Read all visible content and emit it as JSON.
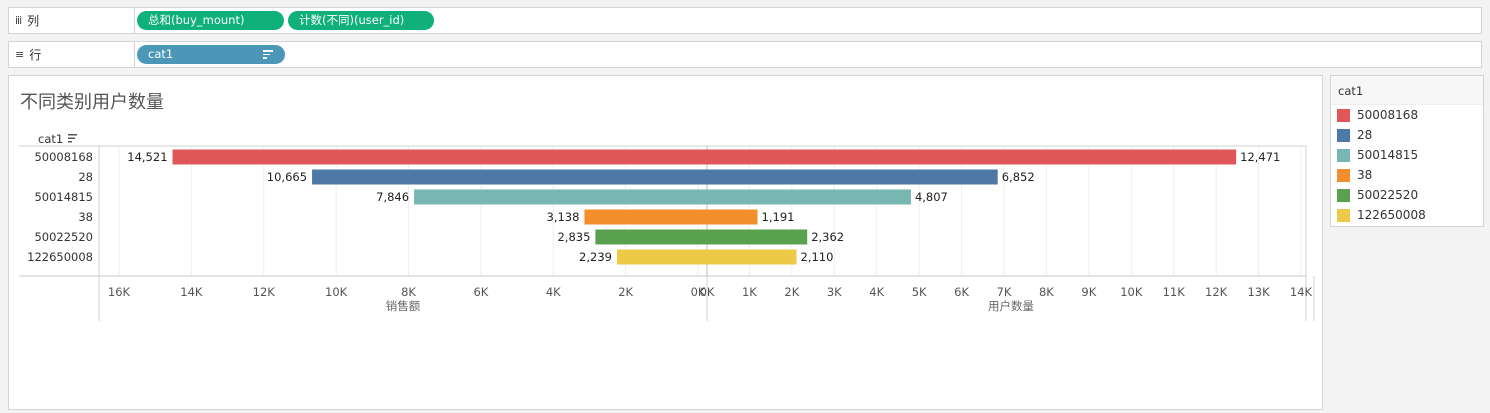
{
  "shelves": {
    "columns": {
      "label": "列",
      "pills": [
        "总和(buy_mount)",
        "计数(不同)(user_id)"
      ]
    },
    "rows": {
      "label": "行",
      "pills": [
        "cat1"
      ]
    }
  },
  "sheet": {
    "title": "不同类别用户数量",
    "row_header": "cat1"
  },
  "legend": {
    "title": "cat1",
    "items": [
      {
        "label": "50008168",
        "color": "#e15759"
      },
      {
        "label": "28",
        "color": "#4e79a7"
      },
      {
        "label": "50014815",
        "color": "#76b7b2"
      },
      {
        "label": "38",
        "color": "#f28e2b"
      },
      {
        "label": "50022520",
        "color": "#59a14f"
      },
      {
        "label": "122650008",
        "color": "#edc948"
      }
    ]
  },
  "chart_data": {
    "type": "bar",
    "orientation": "horizontal-butterfly",
    "categories": [
      "50008168",
      "28",
      "50014815",
      "38",
      "50022520",
      "122650008"
    ],
    "colors": [
      "#e15759",
      "#4e79a7",
      "#76b7b2",
      "#f28e2b",
      "#59a14f",
      "#edc948"
    ],
    "series": [
      {
        "name": "销售额",
        "values": [
          14521,
          10665,
          7846,
          3138,
          2835,
          2239
        ],
        "labels": [
          "14,521",
          "10,665",
          "7,846",
          "3,138",
          "2,835",
          "2,239"
        ],
        "axis_label": "销售额",
        "xlim": [
          0,
          16800
        ],
        "reversed": true,
        "ticks": [
          16000,
          14000,
          12000,
          10000,
          8000,
          6000,
          4000,
          2000,
          0
        ],
        "tick_labels": [
          "16K",
          "14K",
          "12K",
          "10K",
          "8K",
          "6K",
          "4K",
          "2K",
          "0K"
        ]
      },
      {
        "name": "用户数量",
        "values": [
          12471,
          6852,
          4807,
          1191,
          2362,
          2110
        ],
        "labels": [
          "12,471",
          "6,852",
          "4,807",
          "1,191",
          "2,362",
          "2,110"
        ],
        "axis_label": "用户数量",
        "xlim": [
          0,
          14100
        ],
        "reversed": false,
        "ticks": [
          0,
          1000,
          2000,
          3000,
          4000,
          5000,
          6000,
          7000,
          8000,
          9000,
          10000,
          11000,
          12000,
          13000,
          14000
        ],
        "tick_labels": [
          "0K",
          "1K",
          "2K",
          "3K",
          "4K",
          "5K",
          "6K",
          "7K",
          "8K",
          "9K",
          "10K",
          "11K",
          "12K",
          "13K",
          "14K"
        ]
      }
    ],
    "grid": true
  }
}
